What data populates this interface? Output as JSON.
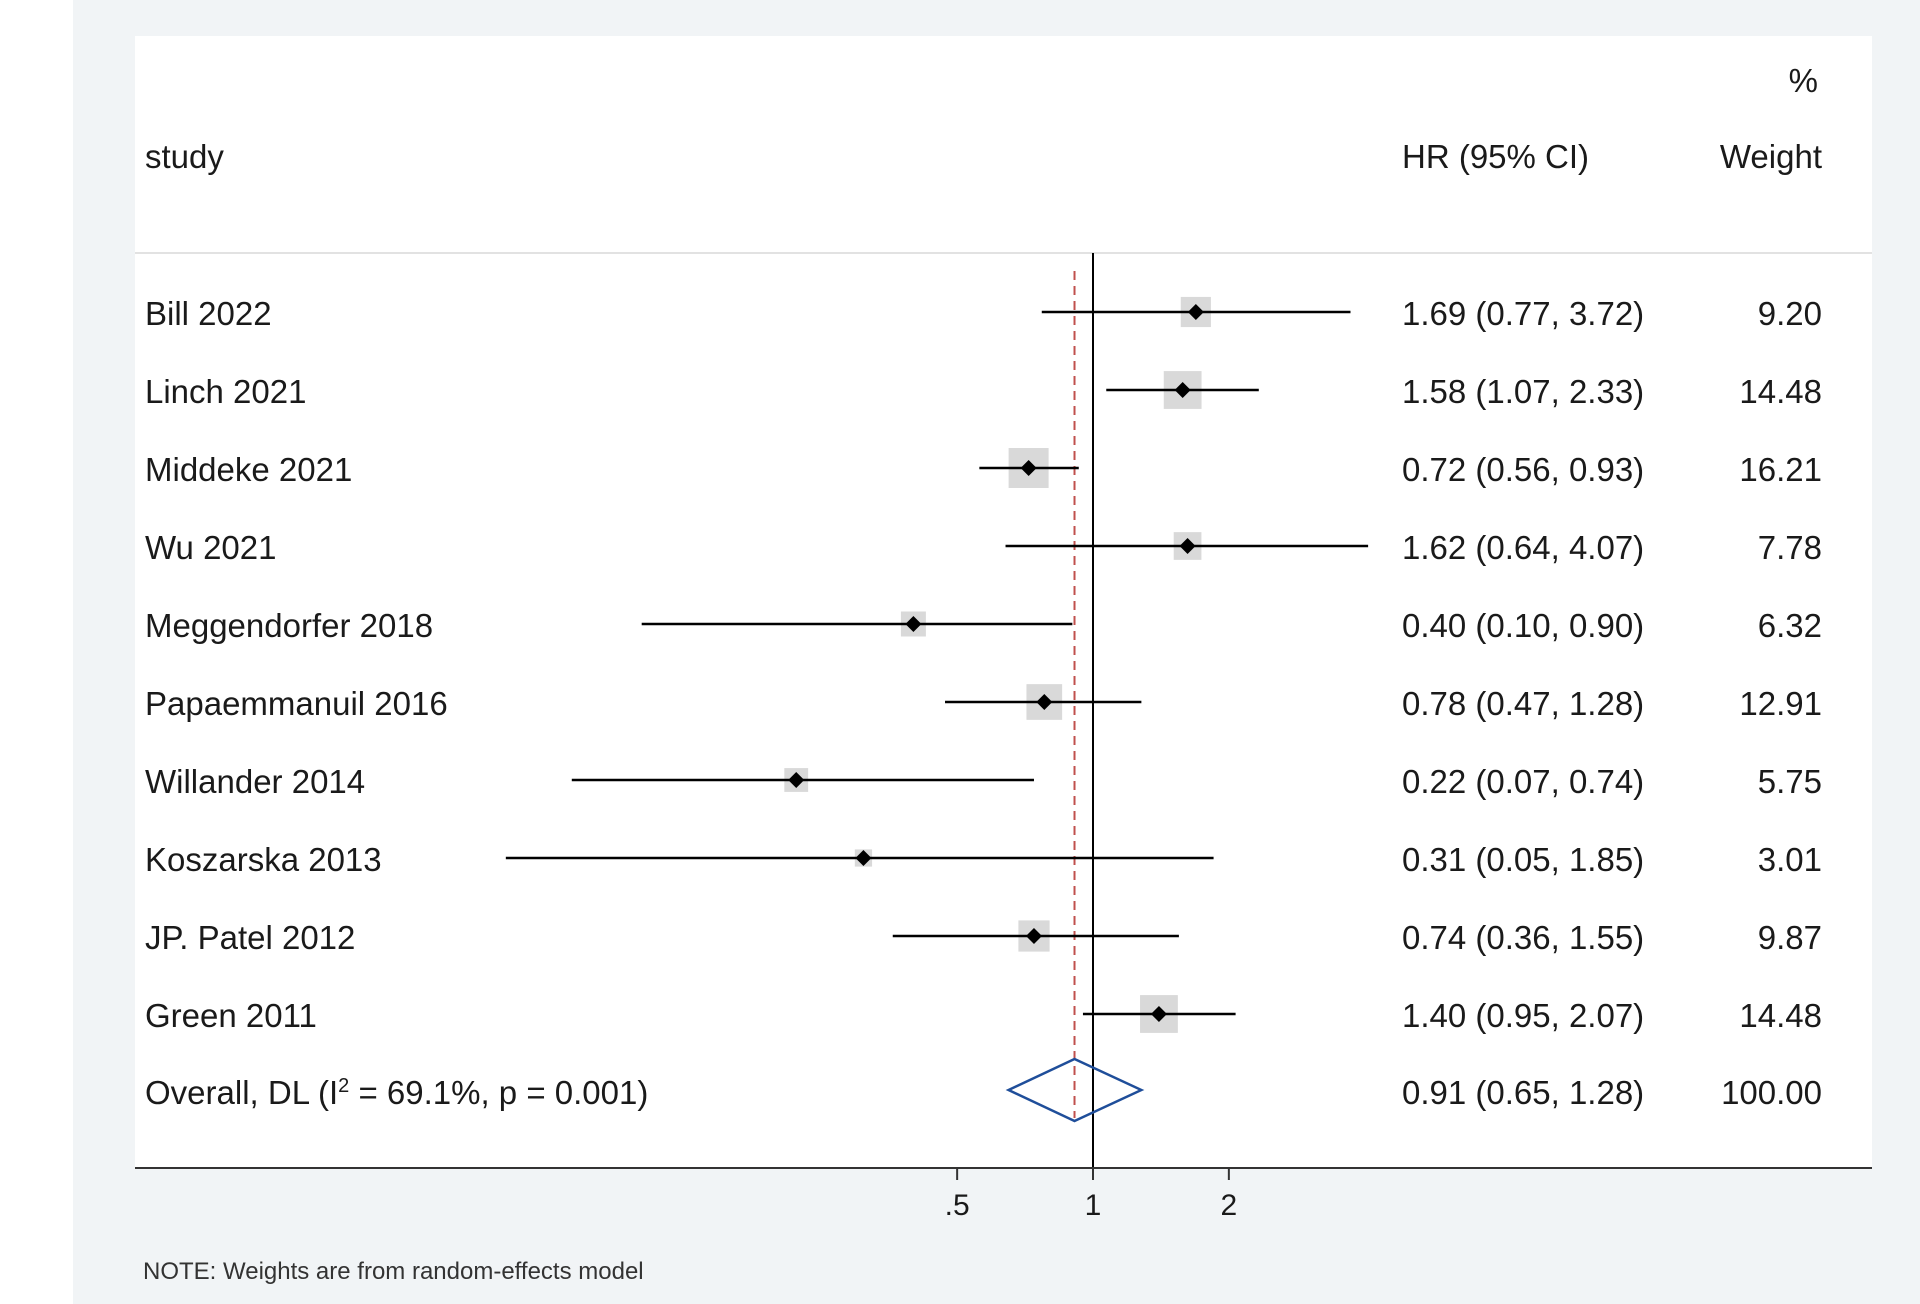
{
  "colors": {
    "page_bg": "#f1f4f6",
    "plot_bg": "#ffffff",
    "ci_line": "#000000",
    "weight_box": "#d9d9d9",
    "overall_diamond": "#1f4e9a",
    "overall_line": "#c0504d",
    "null_line": "#000000"
  },
  "chart_data": {
    "type": "forest",
    "effect_measure": "HR",
    "log_scale": true,
    "null_value": 1,
    "xlim": [
      0.038,
      3.95
    ],
    "xticks": [
      {
        "value": 0.5,
        "label": ".5"
      },
      {
        "value": 1,
        "label": "1"
      },
      {
        "value": 2,
        "label": "2"
      }
    ],
    "headers": {
      "study": "study",
      "effect": "HR (95% CI)",
      "weight_pct": "%",
      "weight": "Weight"
    },
    "studies": [
      {
        "name": "Bill 2022",
        "hr": 1.69,
        "lower": 0.77,
        "upper": 3.72,
        "ci_text": "1.69 (0.77, 3.72)",
        "weight": 9.2,
        "weight_text": "9.20"
      },
      {
        "name": "Linch 2021",
        "hr": 1.58,
        "lower": 1.07,
        "upper": 2.33,
        "ci_text": "1.58 (1.07, 2.33)",
        "weight": 14.48,
        "weight_text": "14.48"
      },
      {
        "name": "Middeke 2021",
        "hr": 0.72,
        "lower": 0.56,
        "upper": 0.93,
        "ci_text": "0.72 (0.56, 0.93)",
        "weight": 16.21,
        "weight_text": "16.21"
      },
      {
        "name": "Wu 2021",
        "hr": 1.62,
        "lower": 0.64,
        "upper": 4.07,
        "ci_text": "1.62 (0.64, 4.07)",
        "weight": 7.78,
        "weight_text": "7.78"
      },
      {
        "name": "Meggendorfer 2018",
        "hr": 0.4,
        "lower": 0.1,
        "upper": 0.9,
        "ci_text": "0.40 (0.10, 0.90)",
        "weight": 6.32,
        "weight_text": "6.32"
      },
      {
        "name": "Papaemmanuil 2016",
        "hr": 0.78,
        "lower": 0.47,
        "upper": 1.28,
        "ci_text": "0.78 (0.47, 1.28)",
        "weight": 12.91,
        "weight_text": "12.91"
      },
      {
        "name": "Willander 2014",
        "hr": 0.22,
        "lower": 0.07,
        "upper": 0.74,
        "ci_text": "0.22 (0.07, 0.74)",
        "weight": 5.75,
        "weight_text": "5.75"
      },
      {
        "name": "Koszarska 2013",
        "hr": 0.31,
        "lower": 0.05,
        "upper": 1.85,
        "ci_text": "0.31 (0.05, 1.85)",
        "weight": 3.01,
        "weight_text": "3.01"
      },
      {
        "name": "JP. Patel 2012",
        "hr": 0.74,
        "lower": 0.36,
        "upper": 1.55,
        "ci_text": "0.74 (0.36, 1.55)",
        "weight": 9.87,
        "weight_text": "9.87"
      },
      {
        "name": "Green 2011",
        "hr": 1.4,
        "lower": 0.95,
        "upper": 2.07,
        "ci_text": "1.40 (0.95, 2.07)",
        "weight": 14.48,
        "weight_text": "14.48"
      }
    ],
    "overall": {
      "label_prefix": "Overall, DL (I",
      "label_sup": "2",
      "label_suffix": " = 69.1%, p = 0.001)",
      "hr": 0.91,
      "lower": 0.65,
      "upper": 1.28,
      "ci_text": "0.91 (0.65, 1.28)",
      "weight_text": "100.00"
    },
    "note": "NOTE: Weights are from random-effects model"
  }
}
